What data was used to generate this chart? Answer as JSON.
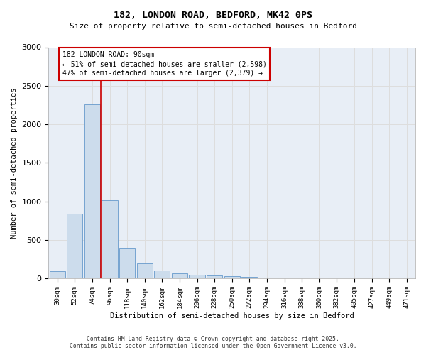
{
  "title_line1": "182, LONDON ROAD, BEDFORD, MK42 0PS",
  "title_line2": "Size of property relative to semi-detached houses in Bedford",
  "xlabel": "Distribution of semi-detached houses by size in Bedford",
  "ylabel": "Number of semi-detached properties",
  "footer_line1": "Contains HM Land Registry data © Crown copyright and database right 2025.",
  "footer_line2": "Contains public sector information licensed under the Open Government Licence v3.0.",
  "bin_labels": [
    "30sqm",
    "52sqm",
    "74sqm",
    "96sqm",
    "118sqm",
    "140sqm",
    "162sqm",
    "184sqm",
    "206sqm",
    "228sqm",
    "250sqm",
    "272sqm",
    "294sqm",
    "316sqm",
    "338sqm",
    "360sqm",
    "382sqm",
    "405sqm",
    "427sqm",
    "449sqm",
    "471sqm"
  ],
  "bar_values": [
    100,
    840,
    2260,
    1020,
    400,
    200,
    110,
    65,
    50,
    40,
    30,
    20,
    15,
    8,
    5,
    3,
    2,
    2,
    1,
    0,
    0
  ],
  "bar_color": "#ccdcec",
  "bar_edge_color": "#6699cc",
  "grid_color": "#dddddd",
  "plot_bg_color": "#e8eef6",
  "fig_bg_color": "#ffffff",
  "annotation_text": "182 LONDON ROAD: 90sqm\n← 51% of semi-detached houses are smaller (2,598)\n47% of semi-detached houses are larger (2,379) →",
  "annotation_box_color": "#ffffff",
  "annotation_border_color": "#cc0000",
  "vline_color": "#cc0000",
  "vline_x_index": 2.5,
  "ylim": [
    0,
    3000
  ],
  "yticks": [
    0,
    500,
    1000,
    1500,
    2000,
    2500,
    3000
  ]
}
